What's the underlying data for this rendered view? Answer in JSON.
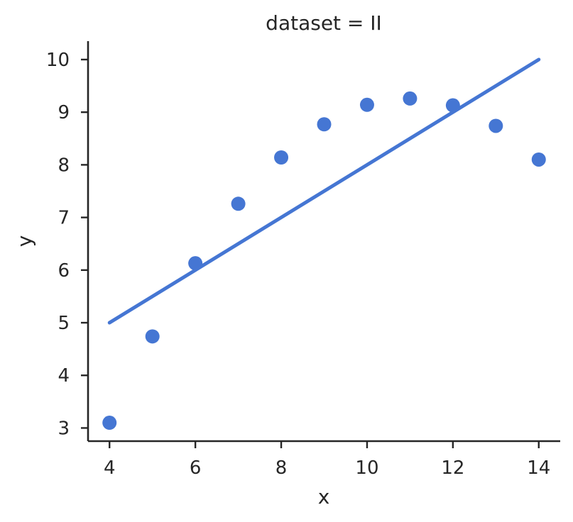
{
  "chart_data": {
    "type": "scatter",
    "title": "dataset = II",
    "xlabel": "x",
    "ylabel": "y",
    "xlim": [
      3.5,
      14.5
    ],
    "ylim": [
      2.75,
      10.35
    ],
    "xticks": [
      4,
      6,
      8,
      10,
      12,
      14
    ],
    "yticks": [
      3,
      4,
      5,
      6,
      7,
      8,
      9,
      10
    ],
    "grid": false,
    "colors": {
      "points": "#4576d3",
      "line": "#4576d3",
      "axis": "#262626"
    },
    "series": [
      {
        "type": "scatter",
        "x": [
          4,
          5,
          6,
          7,
          8,
          9,
          10,
          11,
          12,
          13,
          14
        ],
        "y": [
          3.1,
          4.74,
          6.13,
          7.26,
          8.14,
          8.77,
          9.14,
          9.26,
          9.13,
          8.74,
          8.1
        ]
      },
      {
        "type": "line",
        "x": [
          4,
          14
        ],
        "y": [
          5.0,
          10.0
        ]
      }
    ]
  }
}
